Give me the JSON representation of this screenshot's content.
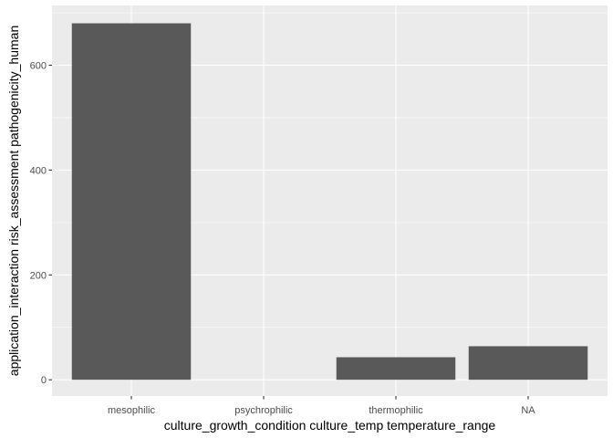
{
  "chart_data": {
    "type": "bar",
    "categories": [
      "mesophilic",
      "psychrophilic",
      "thermophilic",
      "NA"
    ],
    "values": [
      680,
      0,
      43,
      64
    ],
    "xlabel": "culture_growth_condition culture_temp temperature_range",
    "ylabel": "application_interaction risk_assessment pathogenicity_human",
    "ylim": [
      -31,
      714
    ],
    "yticks": [
      0,
      200,
      400,
      600
    ],
    "ytick_labels": [
      "0",
      "200",
      "400",
      "600"
    ],
    "grid": true,
    "legend": "none",
    "colors": {
      "panel_background": "#ebebeb",
      "grid_major": "#ffffff",
      "bar_fill": "#595959",
      "tick_mark": "#333333"
    }
  }
}
